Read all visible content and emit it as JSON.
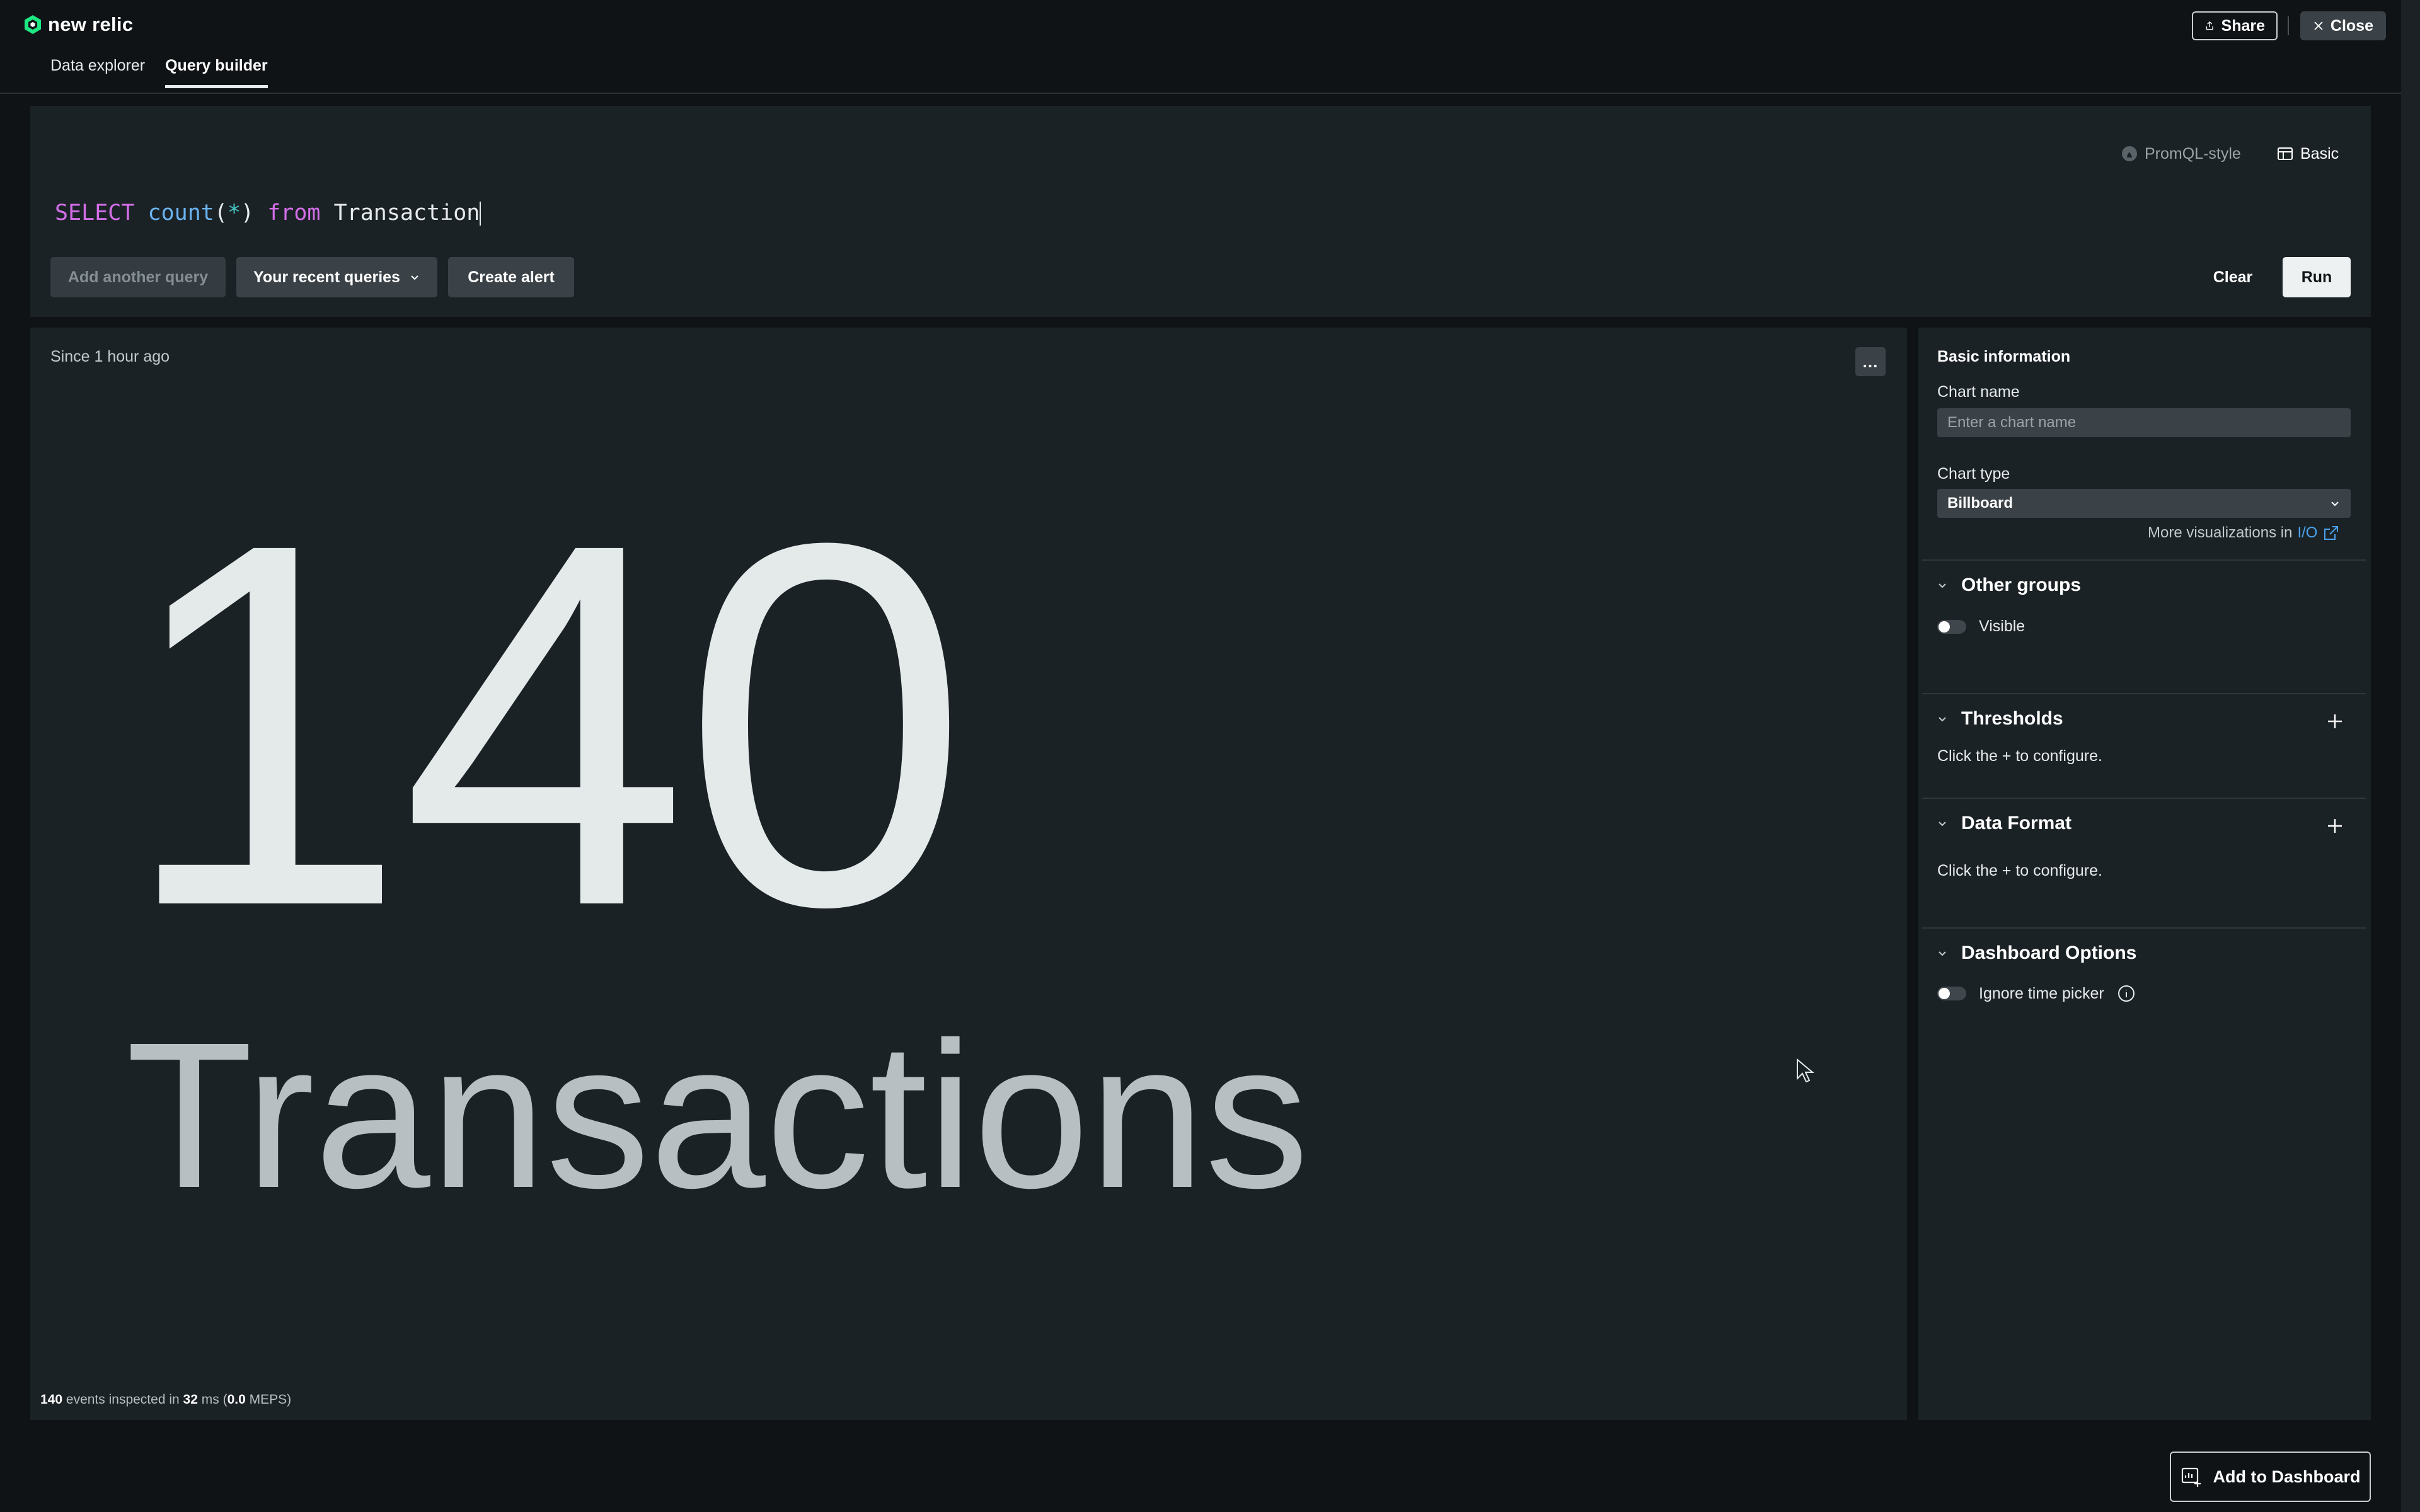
{
  "app": {
    "logo_text": "new relic",
    "share_label": "Share",
    "close_label": "Close"
  },
  "tabs": [
    {
      "label": "Data explorer",
      "active": false
    },
    {
      "label": "Query builder",
      "active": true
    }
  ],
  "query_editor": {
    "mode_promql": "PromQL-style",
    "mode_basic": "Basic",
    "query_tokens": {
      "select": "SELECT",
      "fn": "count",
      "open": "(",
      "star": "*",
      "close": ")",
      "from": "from",
      "table": "Transaction"
    },
    "add_query_label": "Add another query",
    "recent_queries_label": "Your recent queries",
    "create_alert_label": "Create alert",
    "clear_label": "Clear",
    "run_label": "Run"
  },
  "chart": {
    "time_range": "Since 1 hour ago",
    "more_label": "...",
    "billboard_value": "140",
    "billboard_label": "Transactions",
    "stats": {
      "events": "140",
      "events_text": "events inspected in",
      "duration": "32",
      "duration_unit": "ms",
      "meps": "0.0",
      "meps_unit": "MEPS"
    }
  },
  "chart_data": {
    "type": "table",
    "title": "",
    "categories": [
      "Transactions"
    ],
    "values": [
      140
    ]
  },
  "sidebar": {
    "basic_info_heading": "Basic information",
    "chart_name_label": "Chart name",
    "chart_name_placeholder": "Enter a chart name",
    "chart_name_value": "",
    "chart_type_label": "Chart type",
    "chart_type_value": "Billboard",
    "more_viz_text": "More visualizations in",
    "more_viz_link": "I/O",
    "other_groups": {
      "heading": "Other groups",
      "visible_label": "Visible",
      "visible_on": false
    },
    "thresholds": {
      "heading": "Thresholds",
      "help": "Click the + to configure."
    },
    "data_format": {
      "heading": "Data Format",
      "help": "Click the + to configure."
    },
    "dashboard_options": {
      "heading": "Dashboard Options",
      "ignore_time_picker_label": "Ignore time picker",
      "ignore_time_picker_on": false
    }
  },
  "footer": {
    "add_to_dashboard_label": "Add to Dashboard"
  },
  "colors": {
    "background": "#0f1316",
    "panel": "#1b2226",
    "keyword": "#d36ee8",
    "function": "#6bb4f0",
    "link": "#4aa3f0"
  }
}
